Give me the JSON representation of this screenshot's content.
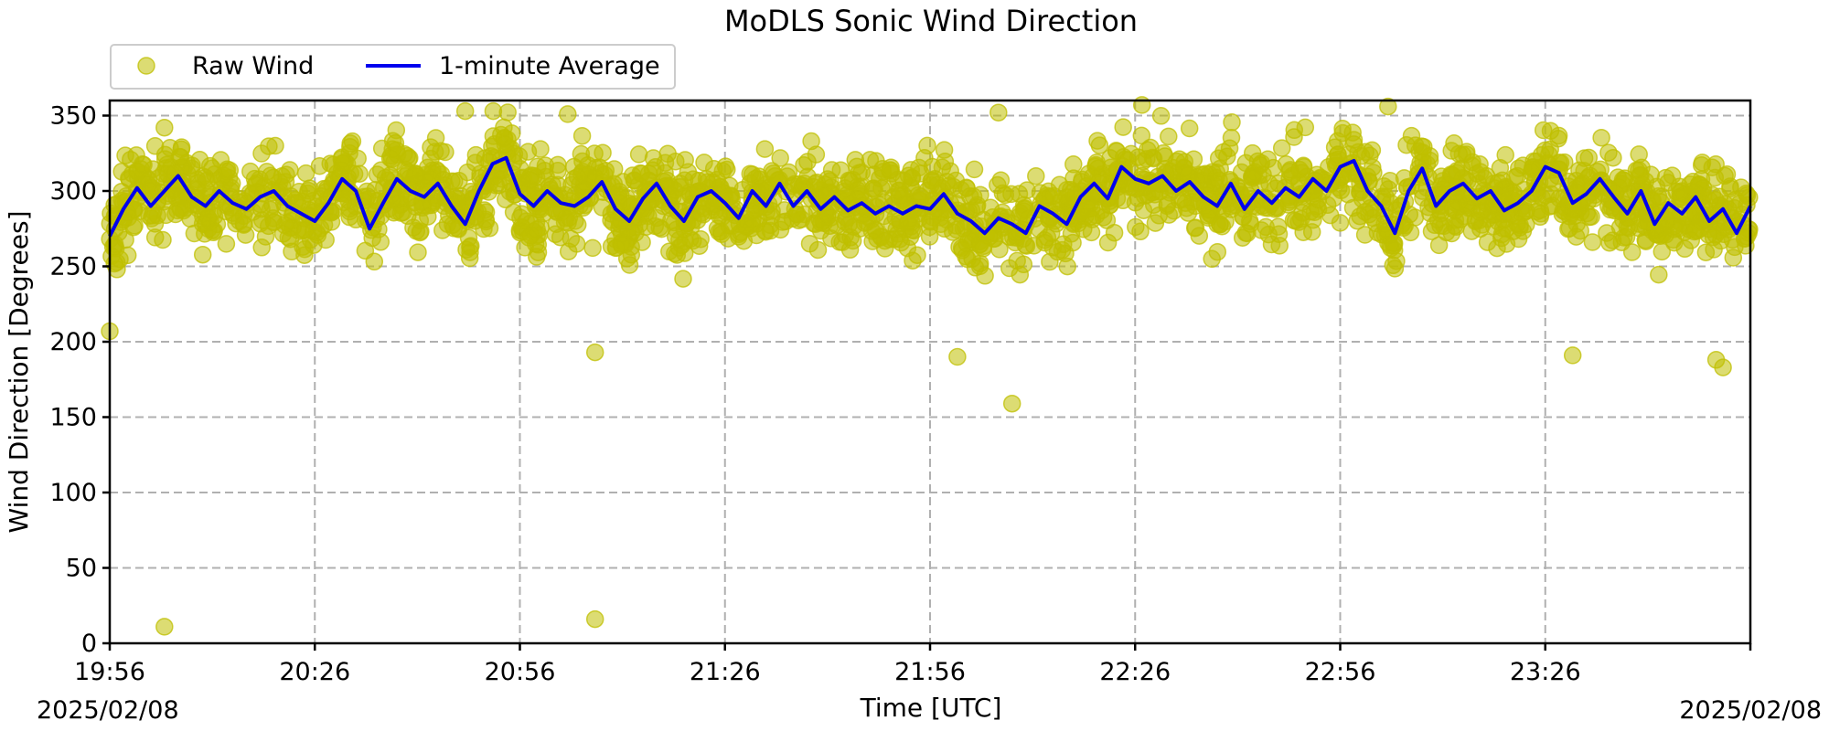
{
  "chart_data": {
    "type": "scatter",
    "title": "MoDLS Sonic Wind Direction",
    "xlabel": "Time [UTC]",
    "ylabel": "Wind Direction [Degrees]",
    "x_start_label": "2025/02/08",
    "x_end_label": "2025/02/08",
    "xlim": [
      "19:56",
      "23:56"
    ],
    "ylim": [
      0,
      360
    ],
    "xticks": [
      "19:56",
      "20:26",
      "20:56",
      "21:26",
      "21:56",
      "22:26",
      "22:56",
      "23:26"
    ],
    "yticks": [
      0,
      50,
      100,
      150,
      200,
      250,
      300,
      350
    ],
    "grid": true,
    "legend_position": "top-left, outside above axes",
    "series": [
      {
        "name": "Raw Wind",
        "kind": "scatter",
        "color": "#bfbf00",
        "outliers": [
          {
            "x": "20:04",
            "y": 11
          },
          {
            "x": "21:07",
            "y": 16
          },
          {
            "x": "21:07",
            "y": 193
          },
          {
            "x": "22:08",
            "y": 159
          },
          {
            "x": "22:00",
            "y": 190
          },
          {
            "x": "23:30",
            "y": 191
          },
          {
            "x": "23:52",
            "y": 183
          },
          {
            "x": "23:51",
            "y": 188
          },
          {
            "x": "19:56",
            "y": 207
          },
          {
            "x": "20:04",
            "y": 342
          },
          {
            "x": "20:48",
            "y": 353
          },
          {
            "x": "21:03",
            "y": 351
          },
          {
            "x": "22:06",
            "y": 352
          },
          {
            "x": "22:27",
            "y": 357
          },
          {
            "x": "23:03",
            "y": 356
          }
        ]
      },
      {
        "name": "1-minute Average",
        "kind": "line",
        "color": "#0000ee",
        "points": [
          [
            "19:56",
            270
          ],
          [
            "19:58",
            288
          ],
          [
            "20:00",
            302
          ],
          [
            "20:02",
            290
          ],
          [
            "20:04",
            300
          ],
          [
            "20:06",
            310
          ],
          [
            "20:08",
            296
          ],
          [
            "20:10",
            290
          ],
          [
            "20:12",
            300
          ],
          [
            "20:14",
            292
          ],
          [
            "20:16",
            288
          ],
          [
            "20:18",
            296
          ],
          [
            "20:20",
            300
          ],
          [
            "20:22",
            290
          ],
          [
            "20:24",
            285
          ],
          [
            "20:26",
            280
          ],
          [
            "20:28",
            292
          ],
          [
            "20:30",
            308
          ],
          [
            "20:32",
            300
          ],
          [
            "20:34",
            275
          ],
          [
            "20:36",
            292
          ],
          [
            "20:38",
            308
          ],
          [
            "20:40",
            300
          ],
          [
            "20:42",
            296
          ],
          [
            "20:44",
            305
          ],
          [
            "20:46",
            290
          ],
          [
            "20:48",
            278
          ],
          [
            "20:50",
            300
          ],
          [
            "20:52",
            318
          ],
          [
            "20:54",
            322
          ],
          [
            "20:56",
            298
          ],
          [
            "20:58",
            290
          ],
          [
            "21:00",
            300
          ],
          [
            "21:02",
            292
          ],
          [
            "21:04",
            290
          ],
          [
            "21:06",
            296
          ],
          [
            "21:08",
            306
          ],
          [
            "21:10",
            288
          ],
          [
            "21:12",
            280
          ],
          [
            "21:14",
            295
          ],
          [
            "21:16",
            305
          ],
          [
            "21:18",
            290
          ],
          [
            "21:20",
            280
          ],
          [
            "21:22",
            296
          ],
          [
            "21:24",
            300
          ],
          [
            "21:26",
            292
          ],
          [
            "21:28",
            282
          ],
          [
            "21:30",
            300
          ],
          [
            "21:32",
            290
          ],
          [
            "21:34",
            305
          ],
          [
            "21:36",
            290
          ],
          [
            "21:38",
            300
          ],
          [
            "21:40",
            288
          ],
          [
            "21:42",
            296
          ],
          [
            "21:44",
            287
          ],
          [
            "21:46",
            292
          ],
          [
            "21:48",
            285
          ],
          [
            "21:50",
            290
          ],
          [
            "21:52",
            285
          ],
          [
            "21:54",
            290
          ],
          [
            "21:56",
            288
          ],
          [
            "21:58",
            298
          ],
          [
            "22:00",
            285
          ],
          [
            "22:02",
            280
          ],
          [
            "22:04",
            272
          ],
          [
            "22:06",
            282
          ],
          [
            "22:08",
            278
          ],
          [
            "22:10",
            272
          ],
          [
            "22:12",
            290
          ],
          [
            "22:14",
            285
          ],
          [
            "22:16",
            278
          ],
          [
            "22:18",
            296
          ],
          [
            "22:20",
            305
          ],
          [
            "22:22",
            295
          ],
          [
            "22:24",
            316
          ],
          [
            "22:26",
            308
          ],
          [
            "22:28",
            305
          ],
          [
            "22:30",
            310
          ],
          [
            "22:32",
            300
          ],
          [
            "22:34",
            306
          ],
          [
            "22:36",
            296
          ],
          [
            "22:38",
            290
          ],
          [
            "22:40",
            305
          ],
          [
            "22:42",
            288
          ],
          [
            "22:44",
            300
          ],
          [
            "22:46",
            292
          ],
          [
            "22:48",
            302
          ],
          [
            "22:50",
            296
          ],
          [
            "22:52",
            308
          ],
          [
            "22:54",
            300
          ],
          [
            "22:56",
            316
          ],
          [
            "22:58",
            320
          ],
          [
            "23:00",
            300
          ],
          [
            "23:02",
            290
          ],
          [
            "23:04",
            272
          ],
          [
            "23:06",
            300
          ],
          [
            "23:08",
            315
          ],
          [
            "23:10",
            290
          ],
          [
            "23:12",
            300
          ],
          [
            "23:14",
            305
          ],
          [
            "23:16",
            295
          ],
          [
            "23:18",
            300
          ],
          [
            "23:20",
            287
          ],
          [
            "23:22",
            292
          ],
          [
            "23:24",
            300
          ],
          [
            "23:26",
            316
          ],
          [
            "23:28",
            312
          ],
          [
            "23:30",
            292
          ],
          [
            "23:32",
            298
          ],
          [
            "23:34",
            308
          ],
          [
            "23:36",
            296
          ],
          [
            "23:38",
            285
          ],
          [
            "23:40",
            300
          ],
          [
            "23:42",
            278
          ],
          [
            "23:44",
            292
          ],
          [
            "23:46",
            285
          ],
          [
            "23:48",
            296
          ],
          [
            "23:50",
            280
          ],
          [
            "23:52",
            288
          ],
          [
            "23:54",
            272
          ],
          [
            "23:56",
            290
          ]
        ]
      }
    ],
    "raw_scatter_band": {
      "typical_min": 225,
      "typical_max": 345,
      "center_follows": "1-minute Average"
    }
  }
}
